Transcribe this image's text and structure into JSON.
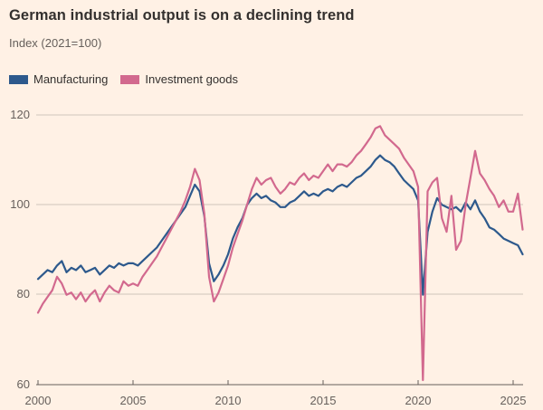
{
  "header": {
    "title": "German industrial output is on a declining trend",
    "subtitle": "Index (2021=100)"
  },
  "chart_data": {
    "type": "line",
    "title": "German industrial output is on a declining trend",
    "subtitle": "Index (2021=100)",
    "x_start": 2000,
    "x_step": 0.25,
    "xlim": [
      2000,
      2025.5
    ],
    "ylim": [
      60,
      122
    ],
    "yticks": [
      120,
      100,
      80,
      60
    ],
    "xticks": [
      2000,
      2005,
      2010,
      2015,
      2020,
      2025
    ],
    "grid": "horizontal",
    "legend_position": "top-left",
    "colors": {
      "background": "#FFF1E5",
      "grid": "#CFC5BA",
      "axis": "#66605C",
      "text": "#33302E"
    },
    "series": [
      {
        "name": "Manufacturing",
        "color": "#2D598C",
        "values": [
          83.5,
          84.5,
          85.5,
          85.0,
          86.5,
          87.5,
          85.0,
          86.0,
          85.5,
          86.5,
          85.0,
          85.5,
          86.0,
          84.5,
          85.5,
          86.5,
          86.0,
          87.0,
          86.5,
          87.0,
          87.0,
          86.5,
          87.5,
          88.5,
          89.5,
          90.5,
          92.0,
          93.5,
          95.0,
          96.5,
          98.0,
          99.5,
          102.0,
          104.5,
          103.0,
          97.5,
          87.0,
          83.0,
          84.5,
          86.5,
          89.0,
          92.5,
          95.0,
          97.0,
          100.0,
          101.5,
          102.5,
          101.5,
          102.0,
          101.0,
          100.5,
          99.5,
          99.5,
          100.5,
          101.0,
          102.0,
          103.0,
          102.0,
          102.5,
          102.0,
          103.0,
          103.5,
          103.0,
          104.0,
          104.5,
          104.0,
          105.0,
          106.0,
          106.5,
          107.5,
          108.5,
          110.0,
          111.0,
          110.0,
          109.5,
          108.5,
          107.0,
          105.5,
          104.5,
          103.5,
          101.0,
          80.0,
          94.0,
          98.5,
          101.5,
          100.0,
          99.5,
          99.0,
          99.5,
          98.5,
          100.5,
          99.0,
          101.0,
          98.5,
          97.0,
          95.0,
          94.5,
          93.5,
          92.5,
          92.0,
          91.5,
          91.0,
          89.0
        ]
      },
      {
        "name": "Investment goods",
        "color": "#D2698E",
        "values": [
          76.0,
          78.0,
          79.5,
          81.0,
          84.0,
          82.5,
          80.0,
          80.5,
          79.0,
          80.5,
          78.5,
          80.0,
          81.0,
          78.5,
          80.5,
          82.0,
          81.0,
          80.5,
          83.0,
          82.0,
          82.5,
          82.0,
          84.0,
          85.5,
          87.0,
          88.5,
          90.5,
          92.5,
          94.5,
          96.5,
          98.5,
          101.0,
          104.0,
          108.0,
          105.5,
          98.0,
          84.0,
          78.5,
          80.5,
          83.5,
          86.5,
          90.5,
          93.5,
          96.5,
          100.0,
          103.5,
          106.0,
          104.5,
          105.5,
          106.0,
          104.0,
          102.5,
          103.5,
          105.0,
          104.5,
          106.0,
          107.0,
          105.5,
          106.5,
          106.0,
          107.5,
          109.0,
          107.5,
          109.0,
          109.0,
          108.5,
          109.5,
          111.0,
          112.0,
          113.5,
          115.0,
          117.0,
          117.5,
          115.5,
          114.5,
          113.5,
          112.5,
          110.5,
          109.0,
          107.5,
          104.0,
          61.0,
          103.0,
          105.0,
          106.0,
          97.0,
          94.0,
          102.0,
          90.0,
          92.0,
          100.0,
          106.0,
          112.0,
          107.0,
          105.5,
          103.5,
          102.0,
          99.5,
          101.0,
          98.5,
          98.5,
          102.5,
          94.5
        ]
      }
    ]
  }
}
